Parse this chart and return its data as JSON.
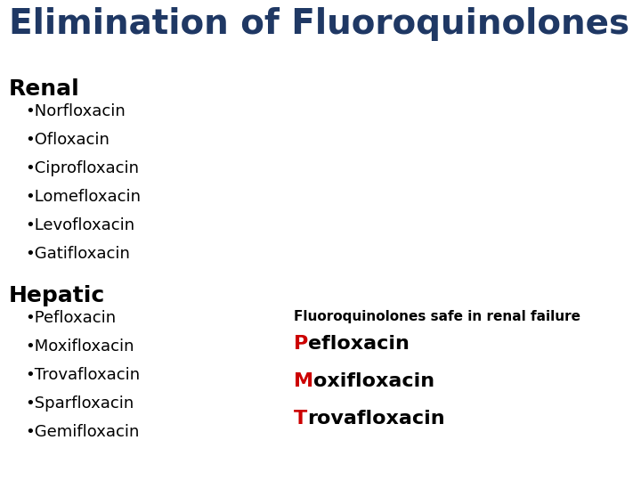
{
  "title": "Elimination of Fluoroquinolones",
  "title_color": "#1F3864",
  "title_fontsize": 28,
  "title_fontweight": "bold",
  "bg_color": "#ffffff",
  "renal_header": "Renal",
  "renal_items": [
    "Norfloxacin",
    "Ofloxacin",
    "Ciprofloxacin",
    "Lomefloxacin",
    "Levofloxacin",
    "Gatifloxacin"
  ],
  "hepatic_header": "Hepatic",
  "hepatic_items": [
    "Pefloxacin",
    "Moxifloxacin",
    "Trovafloxacin",
    "Sparfloxacin",
    "Gemifloxacin"
  ],
  "safe_header": "Fluoroquinolones safe in renal failure",
  "safe_first_letters": [
    "P",
    "M",
    "T"
  ],
  "safe_rest": [
    "efloxacin",
    "oxifloxacin",
    "rovafloxacin"
  ],
  "header_color": "#000000",
  "header_fontsize": 18,
  "header_fontweight": "bold",
  "bullet_color": "#000000",
  "bullet_fontsize": 13,
  "safe_header_color": "#000000",
  "safe_header_fontsize": 11,
  "safe_header_fontweight": "bold",
  "safe_letter_color": "#cc0000",
  "safe_text_color": "#000000",
  "safe_fontsize": 16,
  "safe_fontweight": "bold"
}
